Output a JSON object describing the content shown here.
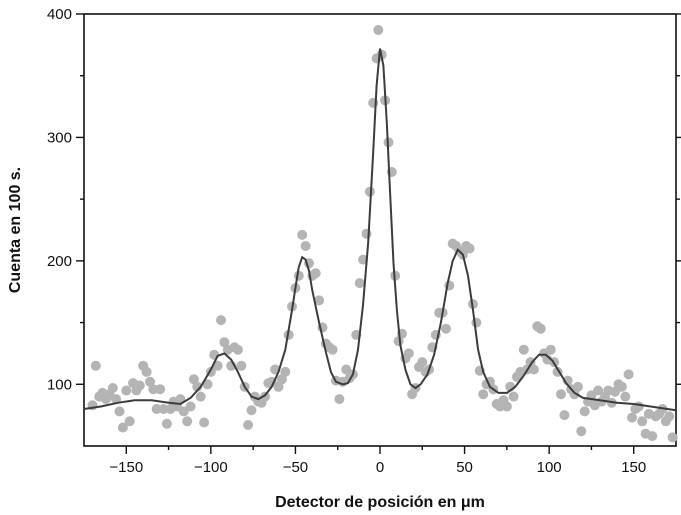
{
  "chart_data": {
    "type": "scatter",
    "title": "",
    "xlabel": "Detector de posición en μm",
    "ylabel": "Cuenta en 100 s.",
    "xlim": [
      -175,
      175
    ],
    "ylim": [
      50,
      400
    ],
    "xticks": [
      -150,
      -100,
      -50,
      0,
      50,
      100,
      150
    ],
    "xtick_labels": [
      "−150",
      "−100",
      "−50",
      "0",
      "50",
      "100",
      "150"
    ],
    "yticks": [
      100,
      200,
      300,
      400
    ],
    "ytick_labels": [
      "100",
      "200",
      "300",
      "400"
    ],
    "grid": false,
    "legend": "none",
    "colors": {
      "points": "#b4b4b4",
      "curve": "#3c3c3c",
      "axes": "#111111"
    },
    "series": [
      {
        "kind": "scatter",
        "points": [
          [
            -170,
            83
          ],
          [
            -168,
            115
          ],
          [
            -166,
            90
          ],
          [
            -164,
            93
          ],
          [
            -162,
            88
          ],
          [
            -160,
            92
          ],
          [
            -158,
            97
          ],
          [
            -156,
            88
          ],
          [
            -154,
            78
          ],
          [
            -152,
            65
          ],
          [
            -150,
            95
          ],
          [
            -148,
            70
          ],
          [
            -146,
            101
          ],
          [
            -144,
            95
          ],
          [
            -142,
            99
          ],
          [
            -140,
            115
          ],
          [
            -138,
            110
          ],
          [
            -136,
            102
          ],
          [
            -134,
            96
          ],
          [
            -132,
            80
          ],
          [
            -130,
            96
          ],
          [
            -128,
            80
          ],
          [
            -126,
            68
          ],
          [
            -124,
            80
          ],
          [
            -122,
            86
          ],
          [
            -120,
            82
          ],
          [
            -118,
            88
          ],
          [
            -116,
            78
          ],
          [
            -114,
            70
          ],
          [
            -112,
            82
          ],
          [
            -110,
            104
          ],
          [
            -108,
            98
          ],
          [
            -106,
            90
          ],
          [
            -104,
            69
          ],
          [
            -102,
            100
          ],
          [
            -100,
            110
          ],
          [
            -98,
            124
          ],
          [
            -96,
            115
          ],
          [
            -94,
            152
          ],
          [
            -92,
            134
          ],
          [
            -90,
            128
          ],
          [
            -88,
            115
          ],
          [
            -86,
            130
          ],
          [
            -84,
            128
          ],
          [
            -82,
            115
          ],
          [
            -80,
            98
          ],
          [
            -78,
            67
          ],
          [
            -76,
            79
          ],
          [
            -74,
            90
          ],
          [
            -72,
            86
          ],
          [
            -70,
            85
          ],
          [
            -68,
            90
          ],
          [
            -66,
            101
          ],
          [
            -64,
            102
          ],
          [
            -62,
            112
          ],
          [
            -60,
            98
          ],
          [
            -58,
            104
          ],
          [
            -56,
            110
          ],
          [
            -54,
            140
          ],
          [
            -52,
            163
          ],
          [
            -50,
            178
          ],
          [
            -48,
            188
          ],
          [
            -46,
            221
          ],
          [
            -44,
            212
          ],
          [
            -42,
            198
          ],
          [
            -40,
            188
          ],
          [
            -38,
            190
          ],
          [
            -36,
            168
          ],
          [
            -34,
            146
          ],
          [
            -32,
            133
          ],
          [
            -30,
            130
          ],
          [
            -28,
            128
          ],
          [
            -26,
            103
          ],
          [
            -24,
            88
          ],
          [
            -22,
            102
          ],
          [
            -20,
            112
          ],
          [
            -18,
            105
          ],
          [
            -16,
            108
          ],
          [
            -14,
            140
          ],
          [
            -12,
            182
          ],
          [
            -10,
            201
          ],
          [
            -8,
            222
          ],
          [
            -6,
            256
          ],
          [
            -4,
            328
          ],
          [
            -2,
            364
          ],
          [
            -1,
            387
          ],
          [
            1,
            367
          ],
          [
            3,
            330
          ],
          [
            5,
            296
          ],
          [
            7,
            272
          ],
          [
            9,
            188
          ],
          [
            11,
            135
          ],
          [
            13,
            141
          ],
          [
            15,
            121
          ],
          [
            17,
            125
          ],
          [
            19,
            92
          ],
          [
            21,
            97
          ],
          [
            23,
            114
          ],
          [
            25,
            118
          ],
          [
            27,
            110
          ],
          [
            29,
            112
          ],
          [
            31,
            130
          ],
          [
            33,
            140
          ],
          [
            35,
            158
          ],
          [
            37,
            158
          ],
          [
            39,
            145
          ],
          [
            41,
            180
          ],
          [
            43,
            214
          ],
          [
            45,
            212
          ],
          [
            47,
            208
          ],
          [
            49,
            205
          ],
          [
            51,
            212
          ],
          [
            53,
            210
          ],
          [
            55,
            165
          ],
          [
            57,
            150
          ],
          [
            59,
            111
          ],
          [
            61,
            92
          ],
          [
            63,
            100
          ],
          [
            65,
            102
          ],
          [
            67,
            96
          ],
          [
            69,
            84
          ],
          [
            71,
            82
          ],
          [
            73,
            87
          ],
          [
            75,
            82
          ],
          [
            77,
            98
          ],
          [
            79,
            90
          ],
          [
            81,
            106
          ],
          [
            83,
            110
          ],
          [
            85,
            128
          ],
          [
            87,
            112
          ],
          [
            89,
            118
          ],
          [
            91,
            112
          ],
          [
            93,
            147
          ],
          [
            95,
            145
          ],
          [
            97,
            125
          ],
          [
            99,
            120
          ],
          [
            101,
            128
          ],
          [
            103,
            118
          ],
          [
            105,
            110
          ],
          [
            107,
            92
          ],
          [
            109,
            75
          ],
          [
            111,
            103
          ],
          [
            113,
            96
          ],
          [
            115,
            92
          ],
          [
            117,
            98
          ],
          [
            119,
            62
          ],
          [
            121,
            78
          ],
          [
            123,
            86
          ],
          [
            125,
            91
          ],
          [
            127,
            83
          ],
          [
            129,
            95
          ],
          [
            131,
            86
          ],
          [
            133,
            90
          ],
          [
            135,
            95
          ],
          [
            137,
            85
          ],
          [
            139,
            94
          ],
          [
            141,
            100
          ],
          [
            143,
            98
          ],
          [
            145,
            90
          ],
          [
            147,
            108
          ],
          [
            149,
            73
          ],
          [
            151,
            80
          ],
          [
            153,
            82
          ],
          [
            155,
            70
          ],
          [
            157,
            60
          ],
          [
            159,
            76
          ],
          [
            161,
            58
          ],
          [
            163,
            74
          ],
          [
            165,
            76
          ],
          [
            167,
            80
          ],
          [
            169,
            70
          ],
          [
            171,
            74
          ],
          [
            173,
            57
          ]
        ]
      },
      {
        "kind": "line",
        "points": [
          [
            -175,
            80
          ],
          [
            -165,
            82
          ],
          [
            -155,
            85
          ],
          [
            -145,
            87
          ],
          [
            -135,
            87
          ],
          [
            -125,
            85
          ],
          [
            -118,
            84
          ],
          [
            -112,
            89
          ],
          [
            -106,
            98
          ],
          [
            -100,
            112
          ],
          [
            -96,
            123
          ],
          [
            -92,
            125
          ],
          [
            -88,
            120
          ],
          [
            -84,
            110
          ],
          [
            -80,
            98
          ],
          [
            -76,
            90
          ],
          [
            -72,
            88
          ],
          [
            -68,
            91
          ],
          [
            -64,
            98
          ],
          [
            -60,
            110
          ],
          [
            -56,
            128
          ],
          [
            -52,
            160
          ],
          [
            -50,
            178
          ],
          [
            -48,
            195
          ],
          [
            -46,
            203
          ],
          [
            -44,
            201
          ],
          [
            -42,
            192
          ],
          [
            -40,
            176
          ],
          [
            -36,
            150
          ],
          [
            -32,
            126
          ],
          [
            -29,
            110
          ],
          [
            -26,
            102
          ],
          [
            -22,
            100
          ],
          [
            -19,
            101
          ],
          [
            -16,
            108
          ],
          [
            -13,
            128
          ],
          [
            -10,
            165
          ],
          [
            -7,
            215
          ],
          [
            -4,
            288
          ],
          [
            -2,
            342
          ],
          [
            0,
            372
          ],
          [
            2,
            358
          ],
          [
            4,
            312
          ],
          [
            6,
            255
          ],
          [
            8,
            198
          ],
          [
            10,
            160
          ],
          [
            12,
            132
          ],
          [
            15,
            112
          ],
          [
            18,
            100
          ],
          [
            21,
            97
          ],
          [
            24,
            100
          ],
          [
            28,
            108
          ],
          [
            32,
            124
          ],
          [
            36,
            150
          ],
          [
            40,
            182
          ],
          [
            43,
            200
          ],
          [
            46,
            209
          ],
          [
            49,
            205
          ],
          [
            52,
            188
          ],
          [
            55,
            160
          ],
          [
            58,
            128
          ],
          [
            61,
            110
          ],
          [
            65,
            98
          ],
          [
            70,
            93
          ],
          [
            75,
            93
          ],
          [
            80,
            98
          ],
          [
            85,
            107
          ],
          [
            90,
            118
          ],
          [
            94,
            124
          ],
          [
            98,
            124
          ],
          [
            102,
            119
          ],
          [
            106,
            110
          ],
          [
            110,
            101
          ],
          [
            115,
            93
          ],
          [
            120,
            89
          ],
          [
            130,
            87
          ],
          [
            140,
            85
          ],
          [
            150,
            84
          ],
          [
            160,
            82
          ],
          [
            170,
            80
          ],
          [
            175,
            79
          ]
        ]
      }
    ]
  }
}
